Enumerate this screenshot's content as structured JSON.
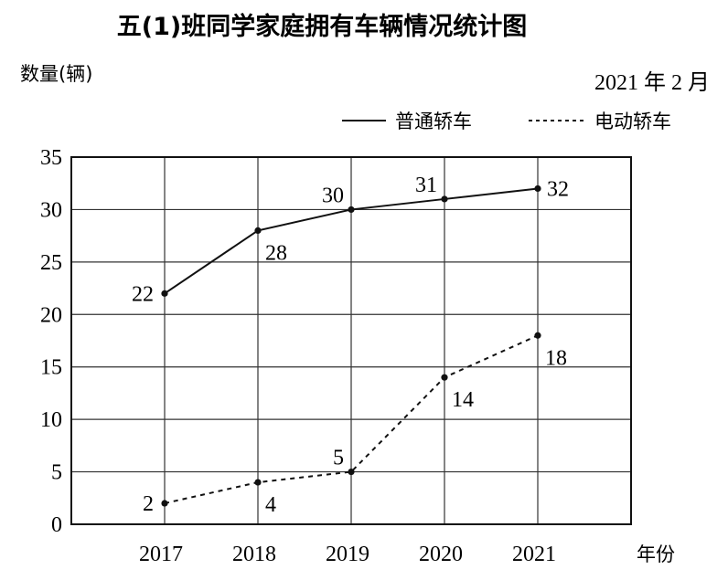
{
  "chart_data": {
    "type": "line",
    "title": "五(1)班同学家庭拥有车辆情况统计图",
    "subtitle": "2021 年 2 月",
    "ylabel": "数量(辆)",
    "xlabel": "年份",
    "categories": [
      "2017",
      "2018",
      "2019",
      "2020",
      "2021"
    ],
    "ylim": [
      0,
      35
    ],
    "yticks": [
      "0",
      "5",
      "10",
      "15",
      "20",
      "25",
      "30",
      "35"
    ],
    "grid": true,
    "legend_position": "top-right",
    "series": [
      {
        "name": "普通轿车",
        "style": "solid",
        "values": [
          22,
          28,
          30,
          31,
          32
        ]
      },
      {
        "name": "电动轿车",
        "style": "dashed",
        "values": [
          2,
          4,
          5,
          14,
          18
        ]
      }
    ]
  }
}
